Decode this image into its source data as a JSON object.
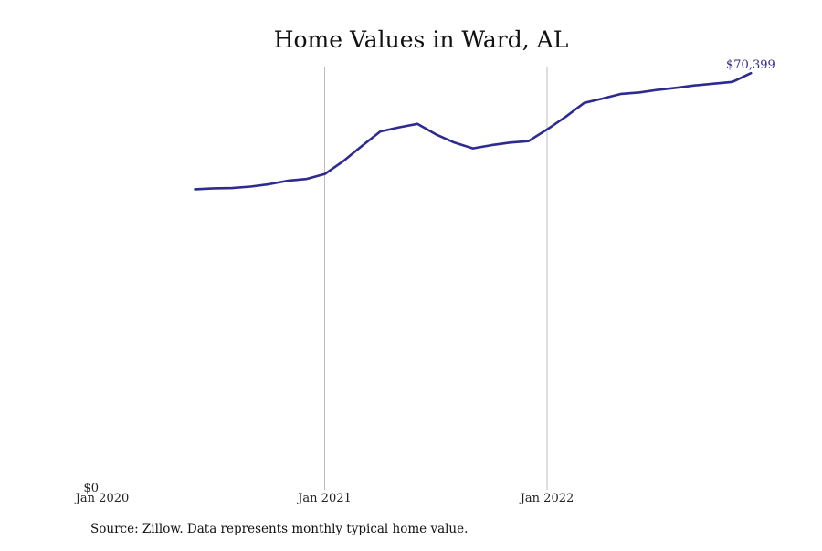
{
  "chart_data": {
    "type": "line",
    "title": "Home Values in Ward, AL",
    "xlabel": "",
    "ylabel": "",
    "x_tick_labels": [
      "Jan 2020",
      "Jan 2021",
      "Jan 2022"
    ],
    "y_tick_labels": [
      "$0"
    ],
    "ylim": [
      0,
      72000
    ],
    "grid": "vertical lines at Jan 2021 and Jan 2022",
    "colors": {
      "line": "#2e2a8f",
      "grid": "#bdbdbd",
      "end_label": "#2e2a8f"
    },
    "end_label": "$70,399",
    "series": [
      {
        "x": [
          "2020-06",
          "2020-07",
          "2020-08",
          "2020-09",
          "2020-10",
          "2020-11",
          "2020-12",
          "2021-01",
          "2021-02",
          "2021-03",
          "2021-04",
          "2021-05",
          "2021-06",
          "2021-07",
          "2021-08",
          "2021-09",
          "2021-10",
          "2021-11",
          "2021-12",
          "2022-01",
          "2022-02",
          "2022-03",
          "2022-04",
          "2022-05",
          "2022-06",
          "2022-07",
          "2022-08",
          "2022-09",
          "2022-10",
          "2022-11",
          "2022-12"
        ],
        "values": [
          50500,
          50650,
          50700,
          50950,
          51350,
          51950,
          52250,
          53100,
          55300,
          57900,
          60400,
          61100,
          61700,
          59900,
          58500,
          57500,
          58050,
          58500,
          58750,
          60750,
          62900,
          65300,
          66050,
          66850,
          67100,
          67550,
          67900,
          68300,
          68600,
          68900,
          70399
        ]
      }
    ]
  },
  "footer": {
    "source_text": "Source: Zillow. Data represents monthly typical home value."
  }
}
